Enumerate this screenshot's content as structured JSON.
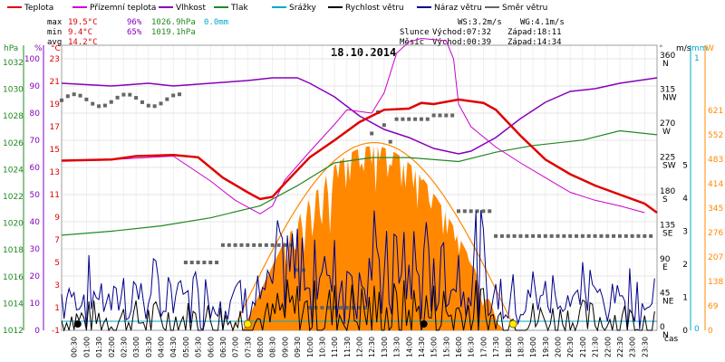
{
  "legend": [
    {
      "label": "Teplota",
      "color": "#e00000"
    },
    {
      "label": "Přízemní teplota",
      "color": "#cc00cc"
    },
    {
      "label": "Vlhkost",
      "color": "#8800bb"
    },
    {
      "label": "Tlak",
      "color": "#228822"
    },
    {
      "label": "Srážky",
      "color": "#00aacc"
    },
    {
      "label": "Rychlost větru",
      "color": "#000000"
    },
    {
      "label": "Náraz větru",
      "color": "#000088"
    },
    {
      "label": "Směr větru",
      "color": "#666666"
    }
  ],
  "stats": {
    "max": {
      "label": "max",
      "temp": "19.5°C",
      "hum": "96%",
      "press": "1026.9hPa",
      "rain": "0.0mm"
    },
    "min": {
      "label": "min",
      "temp": "9.4°C",
      "hum": "65%",
      "press": "1019.1hPa"
    },
    "avg": {
      "label": "avg",
      "temp": "14.2°C"
    }
  },
  "wind_info": {
    "ws": "WS:3.2m/s",
    "wg": "WG:4.1m/s"
  },
  "sun": {
    "label": "Slunce",
    "rise": "Východ:07:32",
    "set": "Západ:18:11"
  },
  "moon": {
    "label": "Měsíc",
    "rise": "Východ:00:39",
    "set": "Západ:14:34"
  },
  "date": "18.10.2014",
  "unit_labels": {
    "hpa": "hPa",
    "pct": "%",
    "degc": "°C",
    "deg": "°",
    "ms": "m/s",
    "mm": "mm",
    "w": "W",
    "cas": "čas"
  },
  "colors": {
    "temp": "#e00000",
    "ground": "#cc00cc",
    "hum": "#8800bb",
    "press": "#228822",
    "wind": "#000000",
    "gust": "#000088",
    "dir": "#666666",
    "solar": "#ff8800",
    "rain": "#00aacc",
    "grid": "#cccccc"
  },
  "chart_data": {
    "type": "line",
    "title": "18.10.2014",
    "xlabel": "čas",
    "x_ticks": [
      "00:30",
      "01:00",
      "01:30",
      "02:00",
      "02:30",
      "03:00",
      "03:30",
      "04:00",
      "04:30",
      "05:00",
      "05:30",
      "06:00",
      "06:30",
      "07:00",
      "07:30",
      "08:00",
      "08:30",
      "09:00",
      "09:30",
      "10:00",
      "10:30",
      "11:00",
      "11:30",
      "12:00",
      "12:30",
      "13:00",
      "13:30",
      "14:00",
      "14:30",
      "15:00",
      "15:30",
      "16:00",
      "16:30",
      "17:00",
      "17:30",
      "18:00",
      "18:30",
      "19:00",
      "19:30",
      "20:00",
      "20:30",
      "21:00",
      "21:30",
      "22:00",
      "22:30",
      "23:00",
      "23:30"
    ],
    "axes": {
      "hpa": {
        "label": "hPa",
        "ticks": [
          1012,
          1014,
          1016,
          1018,
          1020,
          1022,
          1024,
          1026,
          1028,
          1030,
          1032
        ]
      },
      "pct": {
        "label": "%",
        "ticks": [
          0,
          10,
          20,
          30,
          40,
          50,
          60,
          70,
          80,
          90,
          100
        ]
      },
      "degc": {
        "label": "°C",
        "ticks": [
          -1,
          1,
          3,
          5,
          7,
          9,
          11,
          13,
          15,
          17,
          19,
          21,
          23
        ]
      },
      "dir": {
        "label": "°",
        "ticks": [
          {
            "v": "0",
            "d": "N"
          },
          {
            "v": "45",
            "d": "NE"
          },
          {
            "v": "90",
            "d": "E"
          },
          {
            "v": "135",
            "d": "SE"
          },
          {
            "v": "180",
            "d": "S"
          },
          {
            "v": "225",
            "d": "SW"
          },
          {
            "v": "270",
            "d": "W"
          },
          {
            "v": "315",
            "d": "NW"
          },
          {
            "v": "360",
            "d": "N"
          }
        ]
      },
      "ms": {
        "label": "m/s",
        "ticks": [
          0,
          1,
          2,
          3,
          4,
          5
        ]
      },
      "mm": {
        "label": "mm",
        "ticks": [
          0,
          1
        ]
      },
      "w": {
        "label": "W",
        "ticks": [
          0,
          69,
          138,
          207,
          276,
          345,
          414,
          483,
          552,
          621
        ]
      }
    },
    "series": {
      "temp": {
        "name": "Teplota",
        "axis": "degc",
        "pts": [
          [
            0,
            14
          ],
          [
            2,
            14.1
          ],
          [
            3,
            14.4
          ],
          [
            4.5,
            14.5
          ],
          [
            5.5,
            14.3
          ],
          [
            6.5,
            12.5
          ],
          [
            7.5,
            11.2
          ],
          [
            8,
            10.6
          ],
          [
            8.5,
            10.8
          ],
          [
            9,
            12
          ],
          [
            10,
            14.3
          ],
          [
            11,
            15.8
          ],
          [
            12,
            17.4
          ],
          [
            13,
            18.5
          ],
          [
            14,
            18.6
          ],
          [
            14.5,
            19.1
          ],
          [
            15,
            19
          ],
          [
            16,
            19.4
          ],
          [
            17,
            19.1
          ],
          [
            17.5,
            18.5
          ],
          [
            18.5,
            16.2
          ],
          [
            19.5,
            14.1
          ],
          [
            20.5,
            12.8
          ],
          [
            21.5,
            11.8
          ],
          [
            22.5,
            11
          ],
          [
            23.5,
            10.2
          ],
          [
            24,
            9.4
          ]
        ]
      },
      "ground": {
        "name": "Přízemní teplota",
        "axis": "degc",
        "pts": [
          [
            0,
            14
          ],
          [
            2,
            14.1
          ],
          [
            4.5,
            14.4
          ],
          [
            6,
            12.2
          ],
          [
            7,
            10.5
          ],
          [
            8,
            9.3
          ],
          [
            8.5,
            10
          ],
          [
            9,
            12.3
          ],
          [
            10,
            14.8
          ],
          [
            11,
            17.2
          ],
          [
            11.5,
            18.5
          ],
          [
            12.5,
            18.2
          ],
          [
            13,
            20
          ],
          [
            13.5,
            23.5
          ],
          [
            14,
            24.5
          ],
          [
            14.5,
            24.8
          ],
          [
            15.5,
            24.6
          ],
          [
            15.8,
            23
          ],
          [
            16,
            19
          ],
          [
            16.5,
            17
          ],
          [
            17.5,
            15.2
          ],
          [
            18.5,
            13.8
          ],
          [
            19.5,
            12.5
          ],
          [
            20.5,
            11.2
          ],
          [
            21.5,
            10.5
          ],
          [
            22.5,
            10
          ],
          [
            23.5,
            9.4
          ]
        ]
      },
      "hum": {
        "name": "Vlhkost",
        "axis": "pct",
        "pts": [
          [
            0,
            91
          ],
          [
            2,
            90
          ],
          [
            3.5,
            91
          ],
          [
            4.5,
            90
          ],
          [
            6,
            91
          ],
          [
            7.5,
            92
          ],
          [
            8.5,
            93
          ],
          [
            9.5,
            93
          ],
          [
            10,
            91
          ],
          [
            11,
            86
          ],
          [
            12,
            79
          ],
          [
            13,
            74
          ],
          [
            14,
            71
          ],
          [
            15,
            67
          ],
          [
            16,
            65
          ],
          [
            16.5,
            66
          ],
          [
            17.5,
            71
          ],
          [
            18.5,
            78
          ],
          [
            19.5,
            84
          ],
          [
            20.5,
            88
          ],
          [
            21.5,
            89
          ],
          [
            22.5,
            91
          ],
          [
            24,
            93
          ]
        ]
      },
      "press": {
        "name": "Tlak",
        "axis": "hpa",
        "pts": [
          [
            0,
            1019.1
          ],
          [
            2,
            1019.4
          ],
          [
            4,
            1019.8
          ],
          [
            6,
            1020.4
          ],
          [
            8,
            1021.3
          ],
          [
            9.5,
            1022.8
          ],
          [
            11,
            1024.5
          ],
          [
            12.5,
            1024.9
          ],
          [
            14,
            1024.9
          ],
          [
            16,
            1024.6
          ],
          [
            17.5,
            1025.3
          ],
          [
            19,
            1025.8
          ],
          [
            21,
            1026.2
          ],
          [
            22.5,
            1026.9
          ],
          [
            24,
            1026.6
          ]
        ]
      },
      "wind": {
        "name": "Rychlost větru",
        "axis": "ms"
      },
      "gust": {
        "name": "Náraz větru",
        "axis": "ms"
      },
      "dir": {
        "name": "Směr větru",
        "axis": "dir"
      },
      "solar": {
        "name": "",
        "axis": "w",
        "pts": [
          [
            7.3,
            0
          ],
          [
            9.5,
            110
          ],
          [
            10.5,
            300
          ],
          [
            11.5,
            420
          ],
          [
            12,
            440
          ],
          [
            12.5,
            470
          ],
          [
            13.5,
            515
          ],
          [
            14,
            520
          ],
          [
            14.5,
            510
          ],
          [
            15.5,
            470
          ],
          [
            16,
            430
          ],
          [
            16.5,
            360
          ],
          [
            17,
            200
          ],
          [
            17.4,
            60
          ],
          [
            17.8,
            0
          ]
        ]
      },
      "rain": {
        "name": "Srážky",
        "axis": "mm",
        "pts": [
          [
            0,
            0
          ],
          [
            24,
            0
          ]
        ]
      }
    }
  }
}
